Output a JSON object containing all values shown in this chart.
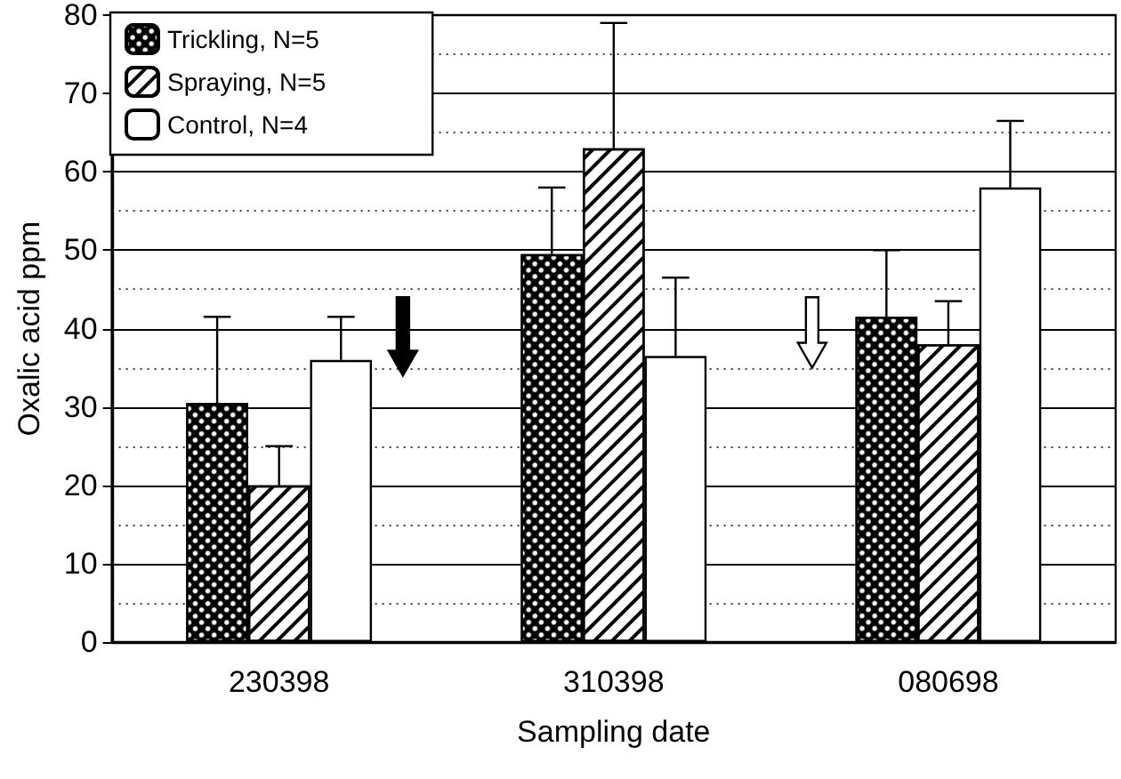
{
  "chart_data": {
    "type": "bar",
    "xlabel": "Sampling date",
    "ylabel": "Oxalic acid ppm",
    "categories": [
      "230398",
      "310398",
      "080698"
    ],
    "series": [
      {
        "name": "Trickling, N=5",
        "color": "#000000",
        "values": [
          30.5,
          49.5,
          41.5
        ],
        "errors": [
          [
            30.5,
            41.5
          ],
          [
            49.5,
            58
          ],
          [
            41.5,
            50
          ]
        ]
      },
      {
        "name": "Spraying, N=5",
        "color": "#ffffff",
        "values": [
          20,
          63,
          38
        ],
        "errors": [
          [
            20,
            25
          ],
          [
            63,
            79
          ],
          [
            38,
            43.5
          ]
        ]
      },
      {
        "name": "Control, N=4",
        "color": "#ffffff",
        "values": [
          36,
          36.5,
          58
        ],
        "errors": [
          [
            36,
            41.5
          ],
          [
            36.5,
            46.5
          ],
          [
            58,
            66.5
          ]
        ]
      }
    ],
    "ylim": [
      0,
      80
    ],
    "yticks": [
      0,
      10,
      20,
      30,
      40,
      50,
      60,
      70,
      80
    ],
    "grid": "y",
    "legend": "top left"
  }
}
